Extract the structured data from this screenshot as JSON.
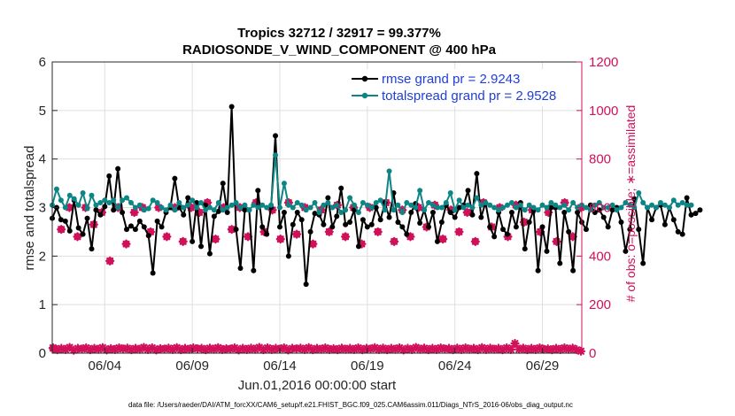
{
  "chart_data": {
    "type": "line",
    "title": "Tropics 32712 / 32917 = 99.377%",
    "subtitle": "RADIOSONDE_V_WIND_COMPONENT @ 400 hPa",
    "xlabel": "Jun.01,2016 00:00:00 start",
    "ylabel": "rmse and totalspread",
    "ylabel_right": "# of obs: o=possible; ∗=assimilated",
    "ylim": [
      0,
      6
    ],
    "ylim_right": [
      0,
      1200
    ],
    "yticks": [
      "0",
      "1",
      "2",
      "3",
      "4",
      "5",
      "6"
    ],
    "yticks_right": [
      "0",
      "200",
      "400",
      "600",
      "800",
      "1000",
      "1200"
    ],
    "xlim": [
      1,
      31.25
    ],
    "xticks": [
      {
        "x": 4,
        "label": "06/04"
      },
      {
        "x": 9,
        "label": "06/09"
      },
      {
        "x": 14,
        "label": "06/14"
      },
      {
        "x": 19,
        "label": "06/19"
      },
      {
        "x": 24,
        "label": "06/24"
      },
      {
        "x": 29,
        "label": "06/29"
      }
    ],
    "x_start": 1.0,
    "x_step": 0.25,
    "series": [
      {
        "name": "rmse grand pr = 2.9243",
        "color": "#000000",
        "axis": "left",
        "values": [
          2.78,
          3.0,
          2.75,
          2.72,
          2.52,
          3.15,
          2.58,
          2.45,
          2.78,
          2.15,
          2.95,
          2.85,
          3.02,
          3.65,
          2.95,
          3.8,
          2.9,
          2.55,
          2.62,
          2.55,
          2.72,
          2.6,
          2.42,
          1.65,
          2.72,
          2.6,
          2.9,
          3.0,
          3.6,
          3.0,
          2.85,
          3.2,
          2.3,
          3.1,
          2.2,
          3.05,
          2.05,
          2.82,
          2.92,
          3.5,
          2.9,
          5.08,
          2.55,
          1.75,
          2.95,
          2.95,
          1.7,
          3.35,
          2.6,
          2.45,
          3.0,
          4.48,
          2.6,
          2.9,
          2.0,
          2.65,
          2.9,
          2.75,
          1.42,
          2.5,
          2.88,
          2.85,
          2.65,
          3.2,
          2.6,
          2.82,
          3.4,
          2.65,
          2.7,
          2.95,
          2.2,
          2.75,
          2.6,
          2.65,
          3.0,
          2.75,
          3.1,
          2.8,
          3.3,
          2.7,
          2.6,
          2.45,
          2.9,
          3.08,
          2.68,
          2.95,
          2.6,
          2.9,
          2.3,
          2.7,
          3.05,
          2.9,
          2.8,
          3.0,
          3.05,
          3.35,
          2.85,
          3.7,
          2.8,
          3.1,
          2.6,
          2.4,
          2.9,
          2.55,
          2.45,
          2.9,
          2.6,
          3.1,
          2.15,
          2.7,
          2.95,
          1.7,
          2.6,
          2.1,
          3.0,
          3.0,
          1.85,
          2.9,
          2.5,
          1.7,
          2.9,
          2.7,
          2.55,
          3.05,
          2.9,
          2.95,
          2.8,
          2.6,
          2.95,
          3.0,
          2.7,
          2.1,
          2.55,
          3.18,
          2.55,
          1.85,
          3.0,
          2.75,
          3.0,
          3.05,
          2.65,
          3.0,
          2.75,
          2.5,
          2.45,
          3.2,
          2.85,
          2.88,
          2.95
        ]
      },
      {
        "name": "totalspread grand pr = 2.9528",
        "color": "#0e8585",
        "axis": "left",
        "values": [
          3.05,
          3.38,
          3.15,
          3.0,
          3.25,
          3.18,
          3.05,
          3.3,
          2.98,
          3.25,
          3.05,
          3.1,
          3.15,
          3.1,
          3.15,
          3.0,
          3.15,
          3.2,
          3.1,
          3.0,
          3.05,
          2.95,
          2.98,
          3.15,
          3.1,
          3.0,
          2.95,
          3.05,
          2.95,
          3.1,
          3.0,
          3.05,
          3.15,
          3.0,
          3.1,
          2.95,
          3.0,
          2.95,
          3.1,
          2.95,
          3.0,
          3.05,
          3.1,
          3.0,
          3.05,
          2.95,
          3.05,
          3.0,
          3.05,
          3.0,
          3.05,
          4.08,
          3.0,
          3.5,
          3.05,
          3.0,
          3.1,
          3.05,
          2.95,
          3.0,
          3.1,
          2.9,
          3.05,
          3.1,
          3.0,
          3.05,
          2.9,
          2.95,
          3.2,
          3.05,
          2.9,
          3.1,
          3.05,
          3.0,
          3.1,
          3.15,
          2.95,
          3.75,
          2.95,
          3.05,
          2.9,
          3.1,
          3.05,
          3.0,
          3.35,
          2.95,
          3.1,
          3.05,
          3.0,
          3.0,
          3.1,
          3.3,
          2.95,
          3.15,
          3.0,
          3.05,
          3.0,
          3.2,
          3.05,
          3.1,
          3.05,
          3.0,
          2.95,
          3.0,
          3.05,
          3.1,
          3.0,
          3.05,
          2.95,
          3.05,
          3.0,
          2.95,
          3.05,
          3.0,
          3.1,
          3.05,
          3.0,
          3.05,
          2.95,
          3.1,
          3.0,
          3.05,
          3.0,
          2.95,
          3.05,
          3.1,
          3.0,
          3.0,
          3.05,
          2.95,
          3.0,
          3.1,
          3.05,
          3.0,
          3.3,
          3.1,
          3.0,
          3.05,
          3.0,
          3.1,
          3.05,
          3.0,
          3.15,
          3.05,
          3.1,
          3.05,
          3.05
        ]
      },
      {
        "name": "obs possible",
        "color": "#d1105a",
        "axis": "right",
        "marker": "o",
        "values": [
          20,
          510,
          600,
          480,
          600,
          530,
          580,
          380,
          600,
          450,
          580,
          600,
          500,
          600,
          480,
          600,
          460,
          600,
          580,
          620,
          470,
          600,
          510,
          600,
          480,
          620,
          500,
          590,
          470,
          620,
          490,
          600,
          450,
          590,
          500,
          610,
          480,
          600,
          450,
          600,
          500,
          620,
          460,
          590,
          480,
          600,
          520,
          610,
          470,
          590,
          500,
          580,
          460,
          620,
          520,
          600,
          480,
          610,
          540,
          590,
          500,
          580,
          460,
          620,
          480,
          600
        ]
      },
      {
        "name": "obs assimilated",
        "color": "#d1105a",
        "axis": "right",
        "marker": "*",
        "values": [
          20,
          510,
          600,
          480,
          600,
          530,
          580,
          380,
          600,
          450,
          580,
          600,
          500,
          600,
          480,
          600,
          460,
          600,
          580,
          620,
          470,
          600,
          510,
          600,
          480,
          620,
          500,
          590,
          470,
          620,
          490,
          600,
          450,
          590,
          500,
          610,
          480,
          600,
          450,
          600,
          500,
          620,
          460,
          590,
          480,
          600,
          520,
          610,
          470,
          590,
          500,
          580,
          460,
          620,
          520,
          600,
          480,
          610,
          540,
          590,
          500,
          580,
          460,
          620,
          480,
          600
        ]
      },
      {
        "name": "obs near zero",
        "color": "#d1105a",
        "axis": "right",
        "marker": "*",
        "values": [
          22,
          14,
          20,
          15,
          24,
          12,
          20,
          17,
          22,
          14,
          20,
          16,
          23,
          13,
          19,
          15,
          22,
          17,
          21,
          14,
          20,
          16,
          24,
          15,
          22,
          13,
          19,
          17,
          21,
          15,
          23,
          14,
          20,
          16,
          22,
          18,
          20,
          14,
          21,
          16,
          23,
          15,
          19,
          17,
          22,
          13,
          20,
          15,
          21,
          16,
          24,
          14,
          22,
          15,
          20,
          17,
          22,
          13,
          20,
          18,
          21,
          15,
          23,
          14,
          20,
          16,
          22,
          15,
          19,
          14,
          21,
          16,
          20,
          15,
          22,
          14,
          20,
          17,
          23,
          15,
          21,
          14,
          20,
          16,
          22,
          13,
          20,
          15,
          24,
          16,
          21,
          14,
          20,
          15,
          22,
          17,
          20,
          14,
          21,
          15,
          22,
          16,
          20,
          14,
          23,
          15,
          21,
          16,
          20,
          14,
          22,
          15,
          40,
          16,
          21,
          14,
          20,
          15,
          22,
          16,
          18,
          14,
          20,
          15,
          22,
          16,
          21,
          14,
          8
        ]
      }
    ],
    "legend": [
      {
        "label": "rmse grand pr = 2.9243",
        "color": "#000000"
      },
      {
        "label": "totalspread grand pr = 2.9528",
        "color": "#0e8585"
      }
    ],
    "legend_position": "top-right"
  },
  "footer": "data file: /Users/raeder/DAI/ATM_forcXX/CAM6_setup/f.e21.FHIST_BGC.f09_025.CAM6assim.011/Diags_NTrS_2016-06/obs_diag_output.nc",
  "colors": {
    "black": "#000000",
    "teal": "#0e8585",
    "magenta": "#d1105a",
    "legend_text": "#1f3fd6"
  }
}
